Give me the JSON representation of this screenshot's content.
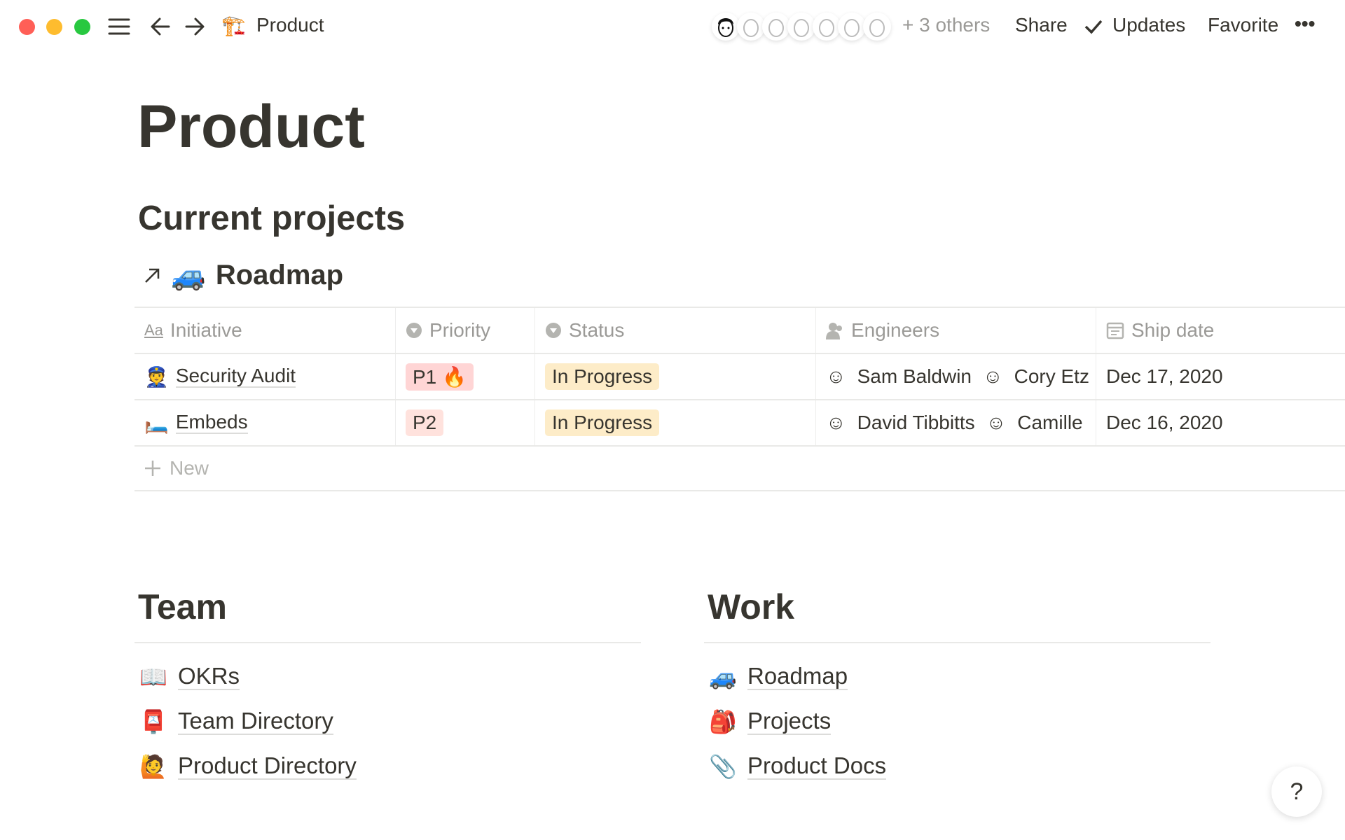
{
  "window": {
    "controls": {
      "close_color": "#ff5f57",
      "minimize_color": "#febc2e",
      "maximize_color": "#28c840"
    }
  },
  "topbar": {
    "breadcrumb_icon": "🏗️",
    "breadcrumb_title": "Product",
    "others_label": "+ 3 others",
    "share_label": "Share",
    "updates_label": "Updates",
    "favorite_label": "Favorite",
    "more_label": "•••"
  },
  "page": {
    "title": "Product",
    "current_projects_heading": "Current projects",
    "linked_db": {
      "icon": "🚙",
      "title": "Roadmap"
    }
  },
  "table": {
    "columns": [
      {
        "label": "Initiative",
        "icon": "text-icon"
      },
      {
        "label": "Priority",
        "icon": "select-icon"
      },
      {
        "label": "Status",
        "icon": "select-icon"
      },
      {
        "label": "Engineers",
        "icon": "person-icon"
      },
      {
        "label": "Ship date",
        "icon": "calendar-icon"
      }
    ],
    "rows": [
      {
        "icon": "👮",
        "initiative": "Security Audit",
        "priority": "P1 🔥",
        "priority_color": "#ffe2dd",
        "status": "In Progress",
        "status_color": "#fdecc8",
        "engineers": [
          "Sam Baldwin",
          "Cory Etz"
        ],
        "ship_date": "Dec 17, 2020"
      },
      {
        "icon": "🛏️",
        "initiative": "Embeds",
        "priority": "P2",
        "priority_color": "#ffe2dd",
        "status": "In Progress",
        "status_color": "#fdecc8",
        "engineers": [
          "David Tibbitts",
          "Camille"
        ],
        "ship_date": "Dec 16, 2020"
      }
    ],
    "new_label": "New"
  },
  "team": {
    "heading": "Team",
    "items": [
      {
        "icon": "📖",
        "label": "OKRs"
      },
      {
        "icon": "📮",
        "label": "Team Directory"
      },
      {
        "icon": "🙋",
        "label": "Product Directory"
      }
    ]
  },
  "work": {
    "heading": "Work",
    "items": [
      {
        "icon": "🚙",
        "label": "Roadmap"
      },
      {
        "icon": "🎒",
        "label": "Projects"
      },
      {
        "icon": "📎",
        "label": "Product Docs"
      }
    ]
  },
  "help_label": "?"
}
